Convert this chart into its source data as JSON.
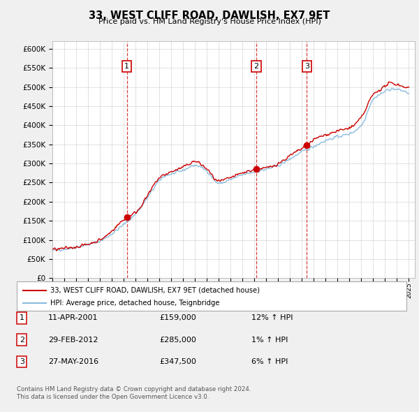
{
  "title": "33, WEST CLIFF ROAD, DAWLISH, EX7 9ET",
  "subtitle": "Price paid vs. HM Land Registry's House Price Index (HPI)",
  "ylim": [
    0,
    620000
  ],
  "yticks": [
    0,
    50000,
    100000,
    150000,
    200000,
    250000,
    300000,
    350000,
    400000,
    450000,
    500000,
    550000,
    600000
  ],
  "sale1_date": 2001.27,
  "sale1_price": 159000,
  "sale1_label": "1",
  "sale2_date": 2012.16,
  "sale2_price": 285000,
  "sale2_label": "2",
  "sale3_date": 2016.41,
  "sale3_price": 347500,
  "sale3_label": "3",
  "line_color_red": "#cc0000",
  "line_color_blue": "#88bbdd",
  "legend_line1": "33, WEST CLIFF ROAD, DAWLISH, EX7 9ET (detached house)",
  "legend_line2": "HPI: Average price, detached house, Teignbridge",
  "table_rows": [
    {
      "num": "1",
      "date": "11-APR-2001",
      "price": "£159,000",
      "change": "12% ↑ HPI"
    },
    {
      "num": "2",
      "date": "29-FEB-2012",
      "price": "£285,000",
      "change": "1% ↑ HPI"
    },
    {
      "num": "3",
      "date": "27-MAY-2016",
      "price": "£347,500",
      "change": "6% ↑ HPI"
    }
  ],
  "footnote1": "Contains HM Land Registry data © Crown copyright and database right 2024.",
  "footnote2": "This data is licensed under the Open Government Licence v3.0.",
  "background_color": "#f0f0f0",
  "plot_bg_color": "#ffffff"
}
